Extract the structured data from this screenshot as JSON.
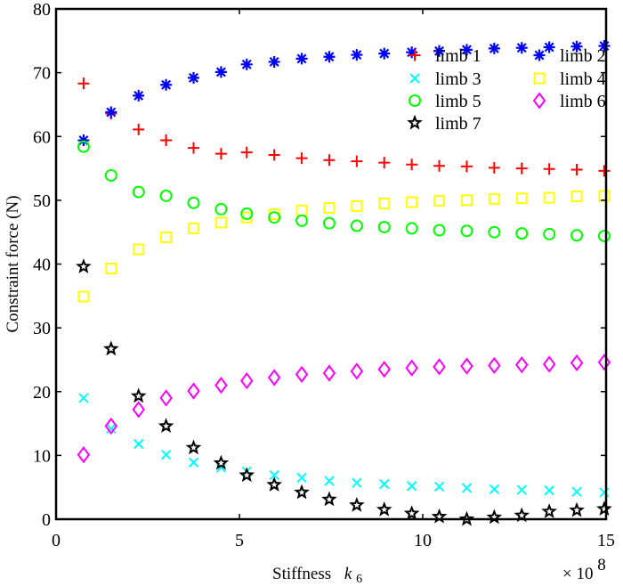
{
  "chart_data": {
    "type": "scatter",
    "title": "",
    "xlabel": "Stiffness",
    "xlabel_symbol": "k",
    "xlabel_subscript": "6",
    "x_multiplier": "× 10",
    "x_multiplier_exp": "8",
    "ylabel": "Constraint force (N)",
    "xlim": [
      0,
      15
    ],
    "ylim": [
      0,
      80
    ],
    "xticks": [
      0,
      5,
      10,
      15
    ],
    "yticks": [
      0,
      10,
      20,
      30,
      40,
      50,
      60,
      70,
      80
    ],
    "grid": false,
    "legend_position": "top-right",
    "x": [
      0.75,
      1.5,
      2.25,
      3.0,
      3.75,
      4.5,
      5.2,
      5.95,
      6.7,
      7.45,
      8.2,
      8.95,
      9.7,
      10.45,
      11.2,
      11.95,
      12.7,
      13.45,
      14.2,
      14.95
    ],
    "series": [
      {
        "name": "limb 1",
        "marker": "plus",
        "color": "#ff0000",
        "values": [
          68.3,
          63.6,
          61.1,
          59.4,
          58.2,
          57.3,
          57.5,
          57.1,
          56.6,
          56.3,
          56.1,
          55.9,
          55.6,
          55.4,
          55.3,
          55.1,
          55.0,
          54.9,
          54.8,
          54.6
        ]
      },
      {
        "name": "limb 2",
        "marker": "asterisk",
        "color": "#0000ff",
        "values": [
          59.4,
          63.8,
          66.4,
          68.1,
          69.2,
          70.1,
          71.3,
          71.7,
          72.2,
          72.5,
          72.8,
          73.0,
          73.2,
          73.4,
          73.6,
          73.8,
          73.9,
          74.0,
          74.1,
          74.2
        ]
      },
      {
        "name": "limb 3",
        "marker": "x",
        "color": "#00ffff",
        "values": [
          19.0,
          14.2,
          11.8,
          10.1,
          8.9,
          8.1,
          7.5,
          6.9,
          6.5,
          6.0,
          5.7,
          5.5,
          5.2,
          5.1,
          4.9,
          4.7,
          4.6,
          4.5,
          4.3,
          4.2
        ]
      },
      {
        "name": "limb 4",
        "marker": "square",
        "color": "#ffff00",
        "values": [
          34.9,
          39.3,
          42.3,
          44.2,
          45.6,
          46.5,
          47.3,
          47.8,
          48.4,
          48.8,
          49.1,
          49.5,
          49.7,
          49.9,
          50.0,
          50.2,
          50.3,
          50.4,
          50.6,
          50.7
        ]
      },
      {
        "name": "limb 5",
        "marker": "circle",
        "color": "#00ff00",
        "values": [
          58.4,
          53.9,
          51.3,
          50.7,
          49.6,
          48.6,
          47.9,
          47.3,
          46.8,
          46.4,
          46.0,
          45.8,
          45.6,
          45.3,
          45.2,
          45.0,
          44.8,
          44.7,
          44.5,
          44.4
        ]
      },
      {
        "name": "limb 6",
        "marker": "diamond",
        "color": "#ff00ff",
        "values": [
          10.1,
          14.6,
          17.2,
          19.0,
          20.1,
          21.0,
          21.7,
          22.2,
          22.7,
          22.9,
          23.2,
          23.5,
          23.7,
          23.9,
          24.0,
          24.1,
          24.2,
          24.3,
          24.5,
          24.6
        ]
      },
      {
        "name": "limb 7",
        "marker": "star",
        "color": "#000000",
        "values": [
          39.6,
          26.7,
          19.3,
          14.6,
          11.2,
          8.8,
          6.9,
          5.4,
          4.2,
          3.1,
          2.2,
          1.5,
          0.9,
          0.4,
          0.0,
          0.3,
          0.6,
          1.2,
          1.4,
          1.6
        ]
      }
    ],
    "legend_order": [
      [
        0,
        1
      ],
      [
        2,
        3
      ],
      [
        4,
        5
      ],
      [
        6
      ]
    ]
  }
}
